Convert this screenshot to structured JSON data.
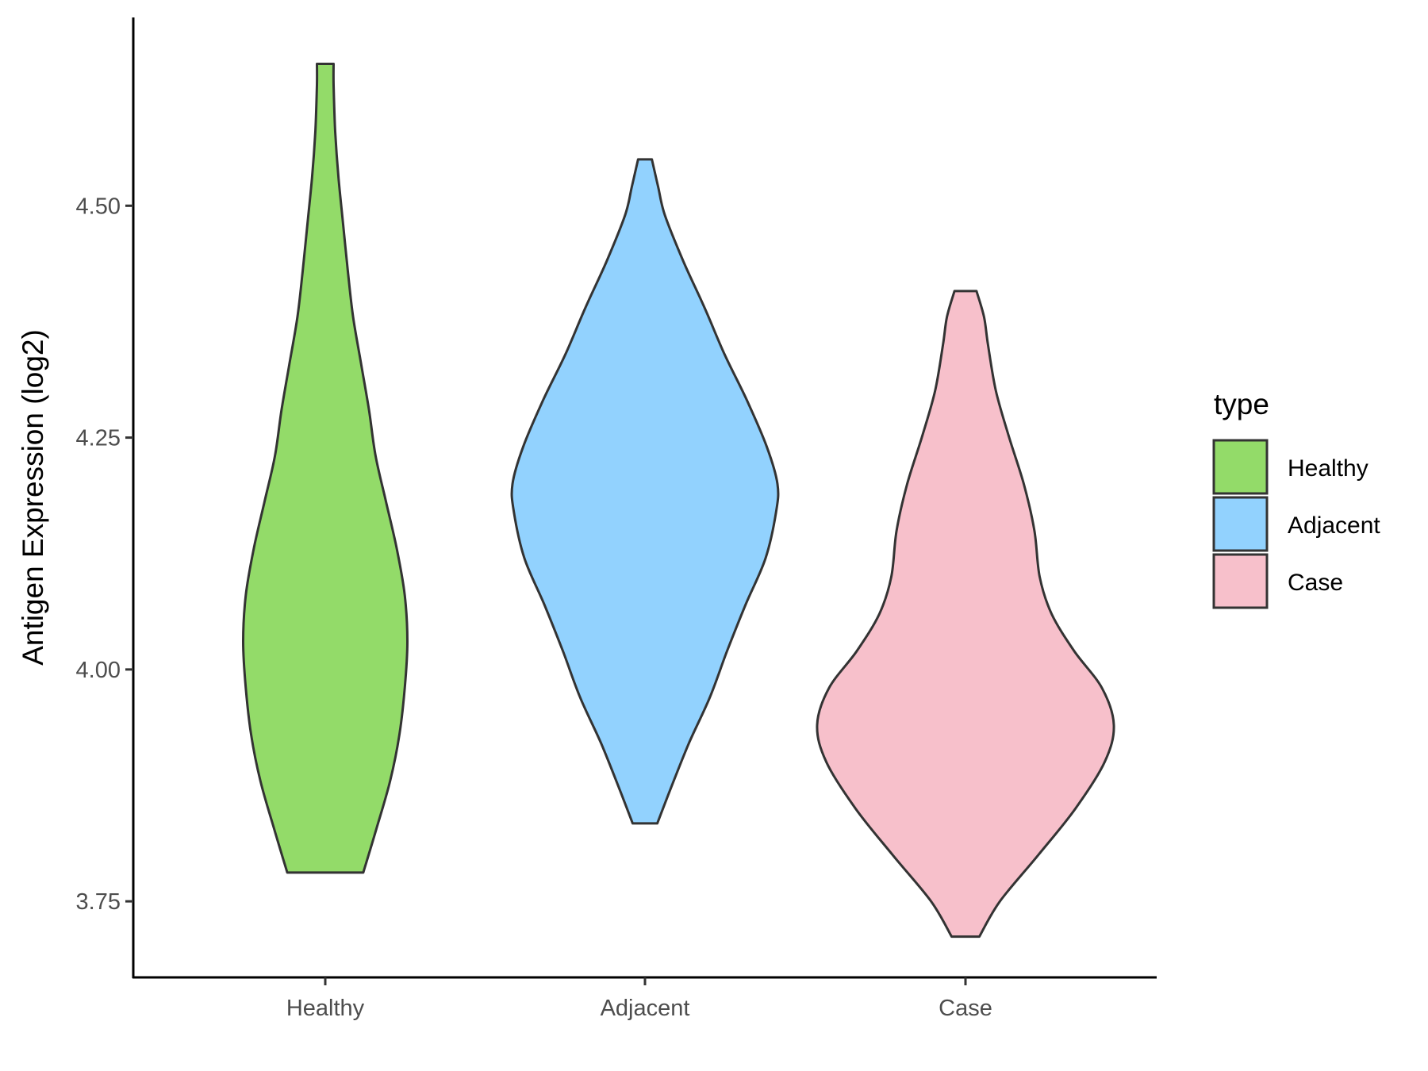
{
  "chart_data": {
    "type": "violin",
    "xlabel": "",
    "ylabel": "Antigen Expression (log2)",
    "categories": [
      "Healthy",
      "Adjacent",
      "Case"
    ],
    "y_ticks": [
      "3.75",
      "4.00",
      "4.25",
      "4.50"
    ],
    "y_tick_values": [
      3.75,
      4.0,
      4.25,
      4.5
    ],
    "ylim": [
      3.668,
      4.703
    ],
    "grid": false,
    "legend": {
      "title": "type",
      "position": "right",
      "entries": [
        "Healthy",
        "Adjacent",
        "Case"
      ]
    },
    "colors": {
      "Healthy": "#93DB69",
      "Adjacent": "#92D2FE",
      "Case": "#F7C0CB",
      "outline": "#333333",
      "axis": "#000000"
    },
    "series": [
      {
        "category": "Healthy",
        "min": 3.781,
        "max": 4.653,
        "profile": [
          [
            3.781,
            0.287
          ],
          [
            3.83,
            0.39
          ],
          [
            3.88,
            0.49
          ],
          [
            3.93,
            0.56
          ],
          [
            3.98,
            0.6
          ],
          [
            4.03,
            0.62
          ],
          [
            4.08,
            0.6
          ],
          [
            4.13,
            0.54
          ],
          [
            4.18,
            0.46
          ],
          [
            4.23,
            0.38
          ],
          [
            4.28,
            0.33
          ],
          [
            4.33,
            0.27
          ],
          [
            4.38,
            0.21
          ],
          [
            4.43,
            0.17
          ],
          [
            4.48,
            0.135
          ],
          [
            4.53,
            0.1
          ],
          [
            4.58,
            0.075
          ],
          [
            4.63,
            0.063
          ],
          [
            4.653,
            0.063
          ]
        ]
      },
      {
        "category": "Adjacent",
        "min": 3.834,
        "max": 4.55,
        "profile": [
          [
            3.834,
            0.093
          ],
          [
            3.87,
            0.19
          ],
          [
            3.92,
            0.33
          ],
          [
            3.97,
            0.49
          ],
          [
            4.02,
            0.62
          ],
          [
            4.07,
            0.76
          ],
          [
            4.12,
            0.91
          ],
          [
            4.17,
            0.99
          ],
          [
            4.2,
            1.0
          ],
          [
            4.24,
            0.92
          ],
          [
            4.29,
            0.77
          ],
          [
            4.34,
            0.6
          ],
          [
            4.39,
            0.45
          ],
          [
            4.44,
            0.29
          ],
          [
            4.49,
            0.15
          ],
          [
            4.52,
            0.1
          ],
          [
            4.55,
            0.052
          ]
        ]
      },
      {
        "category": "Case",
        "min": 3.712,
        "max": 4.408,
        "profile": [
          [
            3.712,
            0.105
          ],
          [
            3.75,
            0.26
          ],
          [
            3.8,
            0.55
          ],
          [
            3.85,
            0.83
          ],
          [
            3.9,
            1.05
          ],
          [
            3.94,
            1.12
          ],
          [
            3.98,
            1.03
          ],
          [
            4.02,
            0.82
          ],
          [
            4.06,
            0.65
          ],
          [
            4.1,
            0.56
          ],
          [
            4.15,
            0.52
          ],
          [
            4.2,
            0.44
          ],
          [
            4.25,
            0.33
          ],
          [
            4.3,
            0.23
          ],
          [
            4.35,
            0.17
          ],
          [
            4.38,
            0.14
          ],
          [
            4.408,
            0.083
          ]
        ]
      }
    ]
  }
}
